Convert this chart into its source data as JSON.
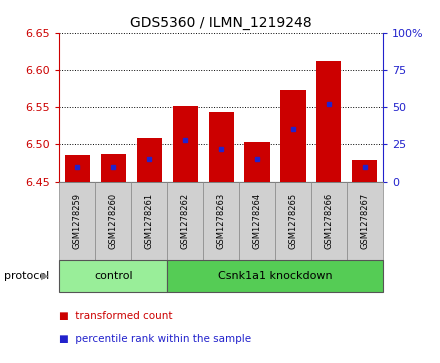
{
  "title": "GDS5360 / ILMN_1219248",
  "samples": [
    "GSM1278259",
    "GSM1278260",
    "GSM1278261",
    "GSM1278262",
    "GSM1278263",
    "GSM1278264",
    "GSM1278265",
    "GSM1278266",
    "GSM1278267"
  ],
  "transformed_count": [
    6.485,
    6.487,
    6.508,
    6.552,
    6.543,
    6.503,
    6.573,
    6.612,
    6.479
  ],
  "percentile_rank": [
    10,
    10,
    15,
    28,
    22,
    15,
    35,
    52,
    10
  ],
  "ylim": [
    6.45,
    6.65
  ],
  "yticks": [
    6.45,
    6.5,
    6.55,
    6.6,
    6.65
  ],
  "right_yticks": [
    0,
    25,
    50,
    75,
    100
  ],
  "right_ylim": [
    0,
    100
  ],
  "bar_color": "#cc0000",
  "dot_color": "#2222cc",
  "bar_bottom": 6.45,
  "groups": [
    {
      "label": "control",
      "start": 0,
      "end": 3,
      "color": "#99ee99"
    },
    {
      "label": "Csnk1a1 knockdown",
      "start": 3,
      "end": 9,
      "color": "#55cc55"
    }
  ],
  "protocol_label": "protocol",
  "legend_items": [
    {
      "label": "transformed count",
      "color": "#cc0000"
    },
    {
      "label": "percentile rank within the sample",
      "color": "#2222cc"
    }
  ],
  "tick_color_left": "#cc0000",
  "tick_color_right": "#2222cc",
  "bar_width": 0.7,
  "label_bg_color": "#d0d0d0",
  "label_bg_edge": "#888888"
}
